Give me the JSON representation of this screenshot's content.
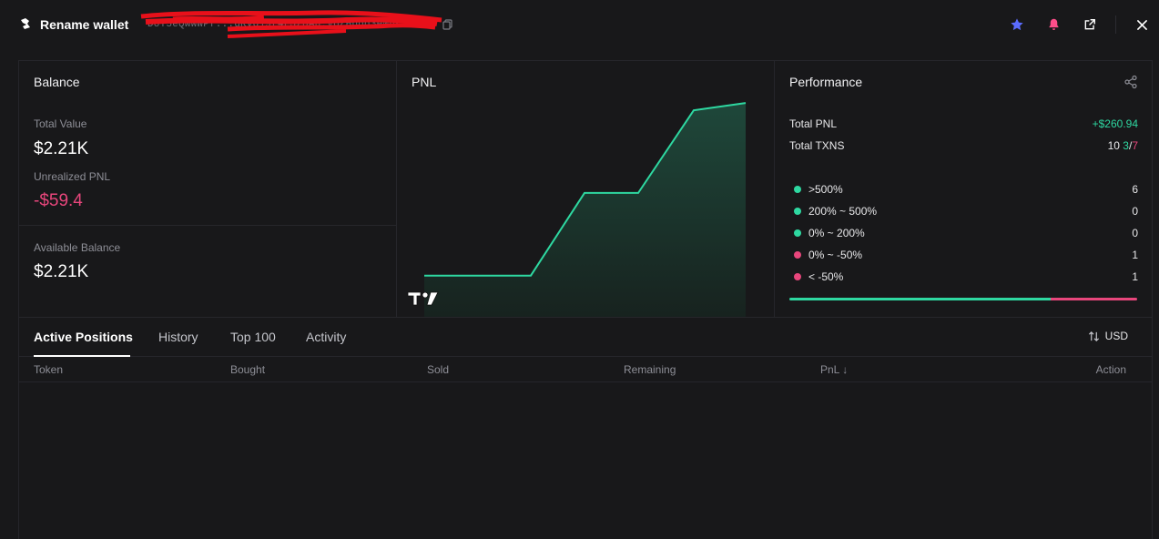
{
  "header": {
    "title": "Rename wallet",
    "address": "DoY5eQwWWPf...uRvUj9t4L3zUAn.y6ZHpqd3eMns",
    "icons": [
      "star-icon",
      "bell-icon",
      "external-link-icon",
      "close-icon"
    ]
  },
  "balance": {
    "title": "Balance",
    "total_value_label": "Total Value",
    "total_value": "$2.21K",
    "unrealized_label": "Unrealized PNL",
    "unrealized_value": "-$59.4",
    "available_label": "Available Balance",
    "available_value": "$2.21K"
  },
  "pnl": {
    "title": "PNL"
  },
  "chart_data": {
    "type": "area",
    "title": "PNL",
    "x": [
      0,
      1,
      2,
      3,
      4,
      5,
      6,
      7
    ],
    "values": [
      0,
      0,
      0,
      125,
      125,
      250,
      261,
      261
    ],
    "ylim": [
      -10,
      290
    ],
    "grid": false,
    "color": "#2ed8a1"
  },
  "performance": {
    "title": "Performance",
    "total_pnl_label": "Total PNL",
    "total_pnl_value": "+$260.94",
    "total_txns_label": "Total TXNS",
    "total_txns": "10",
    "txns_buy": "3",
    "txns_slash": "/",
    "txns_sell": "7",
    "distribution": [
      {
        "label": ">500%",
        "count": "6",
        "color": "#2ed8a1"
      },
      {
        "label": "200% ~ 500%",
        "count": "0",
        "color": "#2ed8a1"
      },
      {
        "label": "0% ~ 200%",
        "count": "0",
        "color": "#2ed8a1"
      },
      {
        "label": "0% ~ -50%",
        "count": "1",
        "color": "#e8467c"
      },
      {
        "label": "< -50%",
        "count": "1",
        "color": "#e8467c"
      }
    ],
    "win_fraction": 0.75
  },
  "tabs": {
    "items": [
      "Active Positions",
      "History",
      "Top 100",
      "Activity"
    ],
    "currency": "USD"
  },
  "table": {
    "columns": [
      "Token",
      "Bought",
      "Sold",
      "Remaining",
      "PnL ↓",
      "Action"
    ]
  },
  "colors": {
    "positive": "#2ed8a1",
    "negative": "#e8467c",
    "accent_star": "#5b6cff",
    "bell": "#ff4d8a"
  }
}
